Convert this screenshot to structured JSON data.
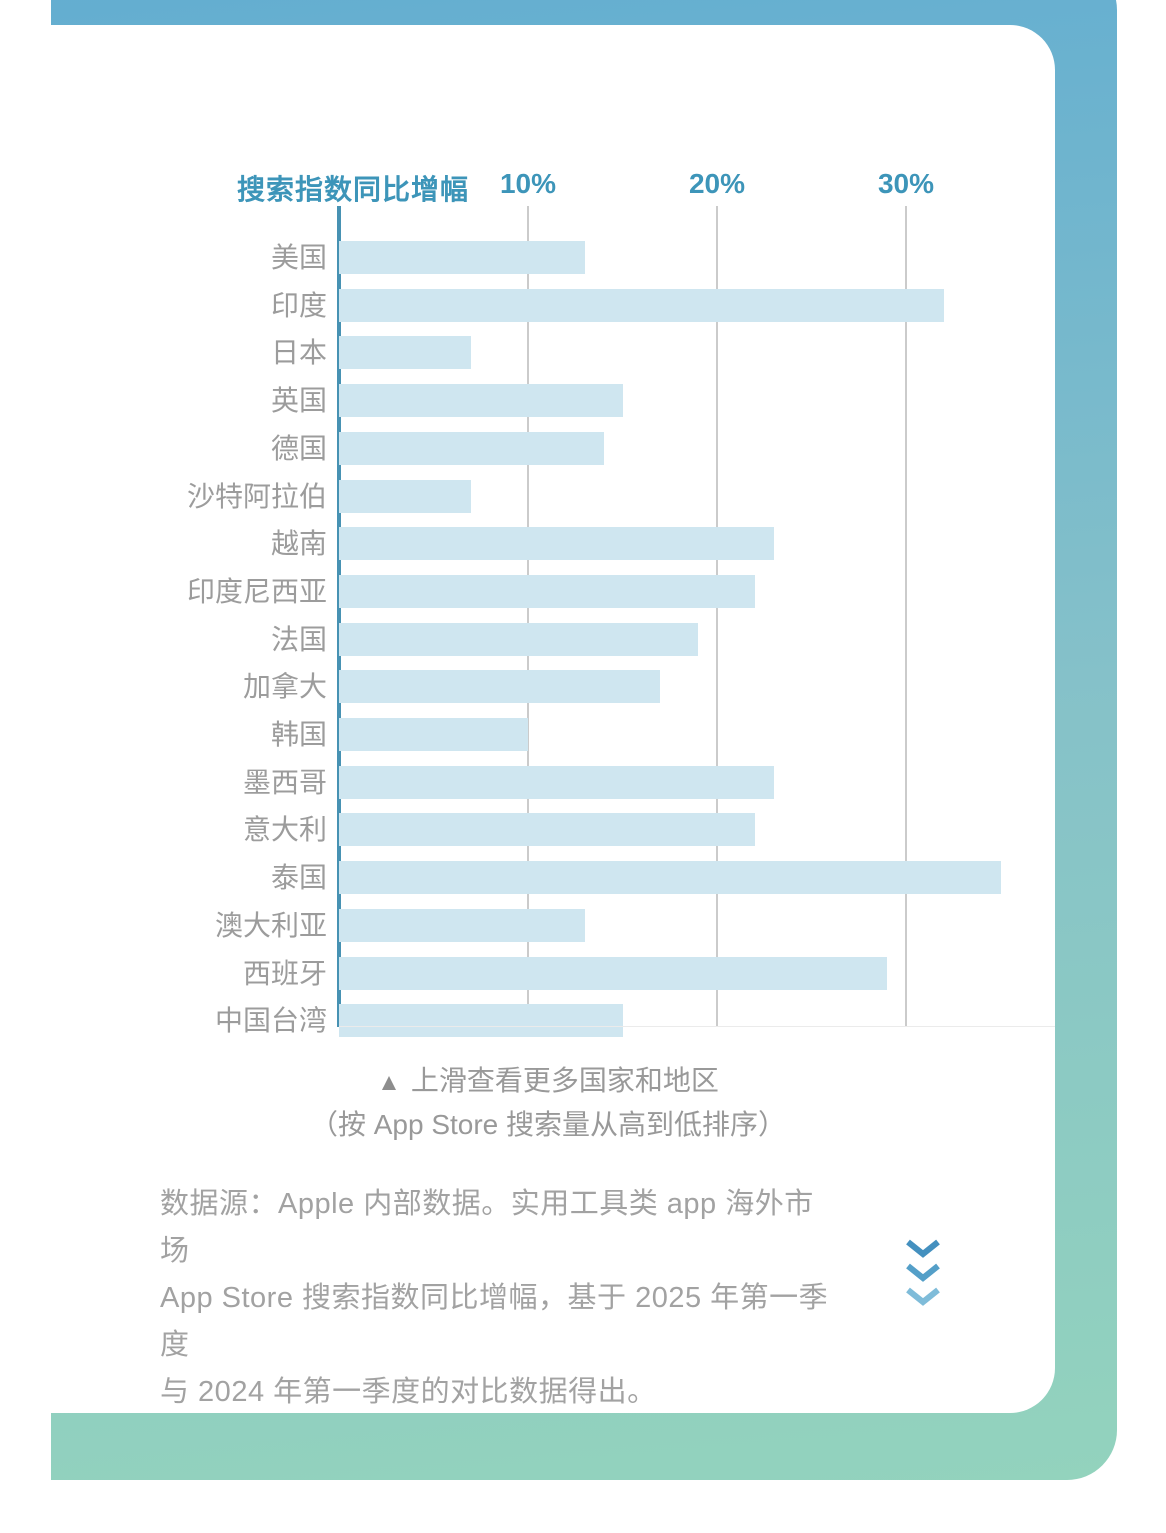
{
  "frame": {
    "gradient_top": "#62add1",
    "gradient_mid": "#85c1c9",
    "gradient_bottom": "#93d3bd"
  },
  "chart_data": {
    "type": "bar",
    "orientation": "horizontal",
    "title": "搜索指数同比增幅",
    "categories": [
      "美国",
      "印度",
      "日本",
      "英国",
      "德国",
      "沙特阿拉伯",
      "越南",
      "印度尼西亚",
      "法国",
      "加拿大",
      "韩国",
      "墨西哥",
      "意大利",
      "泰国",
      "澳大利亚",
      "西班牙",
      "中国台湾"
    ],
    "values": [
      13,
      32,
      7,
      15,
      14,
      7,
      23,
      22,
      19,
      17,
      10,
      23,
      22,
      35,
      13,
      29,
      15
    ],
    "value_unit": "%",
    "xlim": [
      0,
      35.5
    ],
    "xticks": [
      {
        "label": "10%",
        "value": 10
      },
      {
        "label": "20%",
        "value": 20
      },
      {
        "label": "30%",
        "value": 30
      }
    ],
    "grid": "vertical-lines",
    "legend_position": "top-left",
    "colors": {
      "bar": "#cfe6f0",
      "axis_line": "#4792b3",
      "gridline": "#cbcbcb",
      "category_label": "#9c9c9c",
      "header_text": "#3d95b9"
    }
  },
  "note": {
    "icon": "▲",
    "line1": "上滑查看更多国家和地区",
    "line2": "（按 App Store 搜索量从高到低排序）",
    "text_color": "#999999",
    "icon_color": "#8d8d8d"
  },
  "source": {
    "line1": "数据源：Apple 内部数据。实用工具类 app 海外市场",
    "line2": "App Store 搜索指数同比增幅，基于 2025 年第一季度",
    "line3": "与 2024 年第一季度的对比数据得出。",
    "text_color": "#a2a2a2"
  },
  "chevrons": {
    "count": 3,
    "colors": [
      "#4490bf",
      "#549fc8",
      "#7fbcd9"
    ]
  }
}
